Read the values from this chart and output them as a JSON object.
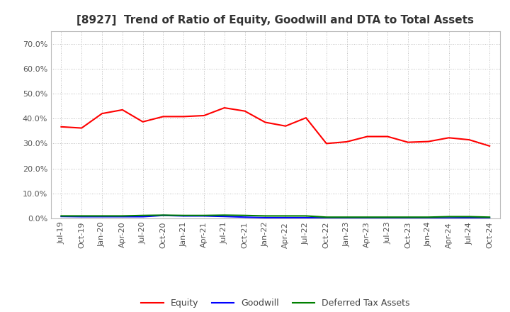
{
  "title": "[8927]  Trend of Ratio of Equity, Goodwill and DTA to Total Assets",
  "x_labels": [
    "Jul-19",
    "Oct-19",
    "Jan-20",
    "Apr-20",
    "Jul-20",
    "Oct-20",
    "Jan-21",
    "Apr-21",
    "Jul-21",
    "Oct-21",
    "Jan-22",
    "Apr-22",
    "Jul-22",
    "Oct-22",
    "Jan-23",
    "Apr-23",
    "Jul-23",
    "Oct-23",
    "Jan-24",
    "Apr-24",
    "Jul-24",
    "Oct-24"
  ],
  "equity": [
    0.367,
    0.362,
    0.42,
    0.435,
    0.387,
    0.408,
    0.408,
    0.412,
    0.443,
    0.43,
    0.385,
    0.37,
    0.403,
    0.3,
    0.307,
    0.328,
    0.328,
    0.305,
    0.308,
    0.323,
    0.315,
    0.29
  ],
  "goodwill": [
    0.008,
    0.007,
    0.007,
    0.007,
    0.007,
    0.012,
    0.01,
    0.01,
    0.008,
    0.005,
    0.003,
    0.003,
    0.003,
    0.002,
    0.002,
    0.002,
    0.002,
    0.002,
    0.002,
    0.002,
    0.003,
    0.002
  ],
  "dta": [
    0.01,
    0.01,
    0.01,
    0.01,
    0.012,
    0.013,
    0.012,
    0.012,
    0.013,
    0.012,
    0.01,
    0.01,
    0.01,
    0.005,
    0.005,
    0.005,
    0.005,
    0.005,
    0.005,
    0.007,
    0.007,
    0.005
  ],
  "equity_color": "#ff0000",
  "goodwill_color": "#0000ff",
  "dta_color": "#008000",
  "ylim": [
    0.0,
    0.75
  ],
  "yticks": [
    0.0,
    0.1,
    0.2,
    0.3,
    0.4,
    0.5,
    0.6,
    0.7
  ],
  "background_color": "#ffffff",
  "plot_bg_color": "#ffffff",
  "grid_color": "#aaaaaa",
  "title_fontsize": 11,
  "tick_fontsize": 8,
  "legend_labels": [
    "Equity",
    "Goodwill",
    "Deferred Tax Assets"
  ]
}
